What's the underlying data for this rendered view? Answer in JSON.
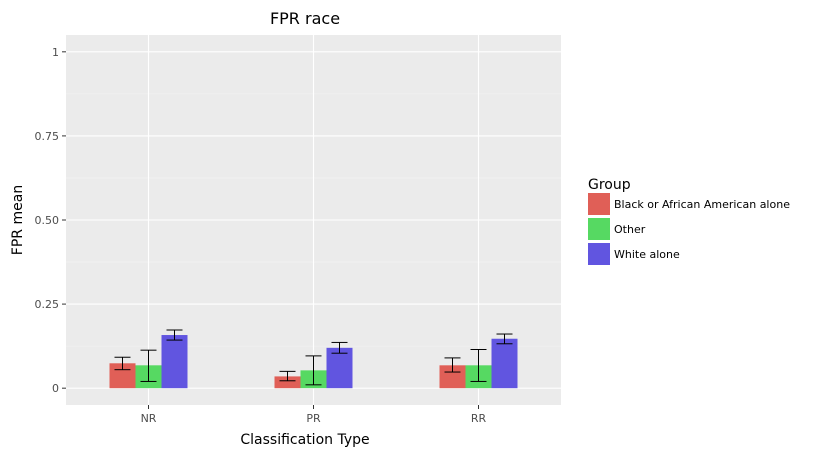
{
  "chart_data": {
    "type": "bar",
    "title": "FPR race",
    "xlabel": "Classification Type",
    "ylabel": "FPR mean",
    "categories": [
      "NR",
      "PR",
      "RR"
    ],
    "ylim": [
      0,
      1.05
    ],
    "yticks": [
      0,
      0.25,
      0.5,
      0.75,
      1
    ],
    "ytick_labels": [
      "0",
      "0.25",
      "0.50",
      "0.75",
      "1"
    ],
    "grid": true,
    "legend": {
      "title": "Group",
      "position": "right"
    },
    "series": [
      {
        "name": "Black or African American alone",
        "color": "#e05f57",
        "values": [
          0.074,
          0.035,
          0.068
        ],
        "err_low": [
          0.055,
          0.022,
          0.048
        ],
        "err_high": [
          0.092,
          0.05,
          0.09
        ]
      },
      {
        "name": "Other",
        "color": "#56d962",
        "values": [
          0.068,
          0.053,
          0.068
        ],
        "err_low": [
          0.02,
          0.01,
          0.02
        ],
        "err_high": [
          0.113,
          0.096,
          0.115
        ]
      },
      {
        "name": "White alone",
        "color": "#6155e0",
        "values": [
          0.158,
          0.12,
          0.147
        ],
        "err_low": [
          0.143,
          0.104,
          0.132
        ],
        "err_high": [
          0.173,
          0.136,
          0.161
        ]
      }
    ]
  }
}
